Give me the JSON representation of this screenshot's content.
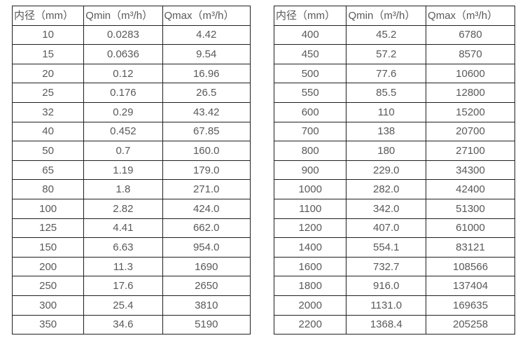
{
  "colors": {
    "text": "#595959",
    "border": "#1f1f1f",
    "background": "#ffffff"
  },
  "tables": [
    {
      "headers": [
        "内径（mm）",
        "Qmin（m³/h）",
        "Qmax（m³/h）"
      ],
      "rows": [
        [
          "10",
          "0.0283",
          "4.42"
        ],
        [
          "15",
          "0.0636",
          "9.54"
        ],
        [
          "20",
          "0.12",
          "16.96"
        ],
        [
          "25",
          "0.176",
          "26.5"
        ],
        [
          "32",
          "0.29",
          "43.42"
        ],
        [
          "40",
          "0.452",
          "67.85"
        ],
        [
          "50",
          "0.7",
          "160.0"
        ],
        [
          "65",
          "1.19",
          "179.0"
        ],
        [
          "80",
          "1.8",
          "271.0"
        ],
        [
          "100",
          "2.82",
          "424.0"
        ],
        [
          "125",
          "4.41",
          "662.0"
        ],
        [
          "150",
          "6.63",
          "954.0"
        ],
        [
          "200",
          "11.3",
          "1690"
        ],
        [
          "250",
          "17.6",
          "2650"
        ],
        [
          "300",
          "25.4",
          "3810"
        ],
        [
          "350",
          "34.6",
          "5190"
        ]
      ]
    },
    {
      "headers": [
        "内径（mm）",
        "Qmin（m³/h）",
        "Qmax（m³/h）"
      ],
      "rows": [
        [
          "400",
          "45.2",
          "6780"
        ],
        [
          "450",
          "57.2",
          "8570"
        ],
        [
          "500",
          "77.6",
          "10600"
        ],
        [
          "550",
          "85.5",
          "12800"
        ],
        [
          "600",
          "110",
          "15200"
        ],
        [
          "700",
          "138",
          "20700"
        ],
        [
          "800",
          "180",
          "27100"
        ],
        [
          "900",
          "229.0",
          "34300"
        ],
        [
          "1000",
          "282.0",
          "42400"
        ],
        [
          "1100",
          "342.0",
          "51300"
        ],
        [
          "1200",
          "407.0",
          "61000"
        ],
        [
          "1400",
          "554.1",
          "83121"
        ],
        [
          "1600",
          "732.7",
          "108566"
        ],
        [
          "1800",
          "916.0",
          "137404"
        ],
        [
          "2000",
          "1131.0",
          "169635"
        ],
        [
          "2200",
          "1368.4",
          "205258"
        ]
      ]
    }
  ]
}
